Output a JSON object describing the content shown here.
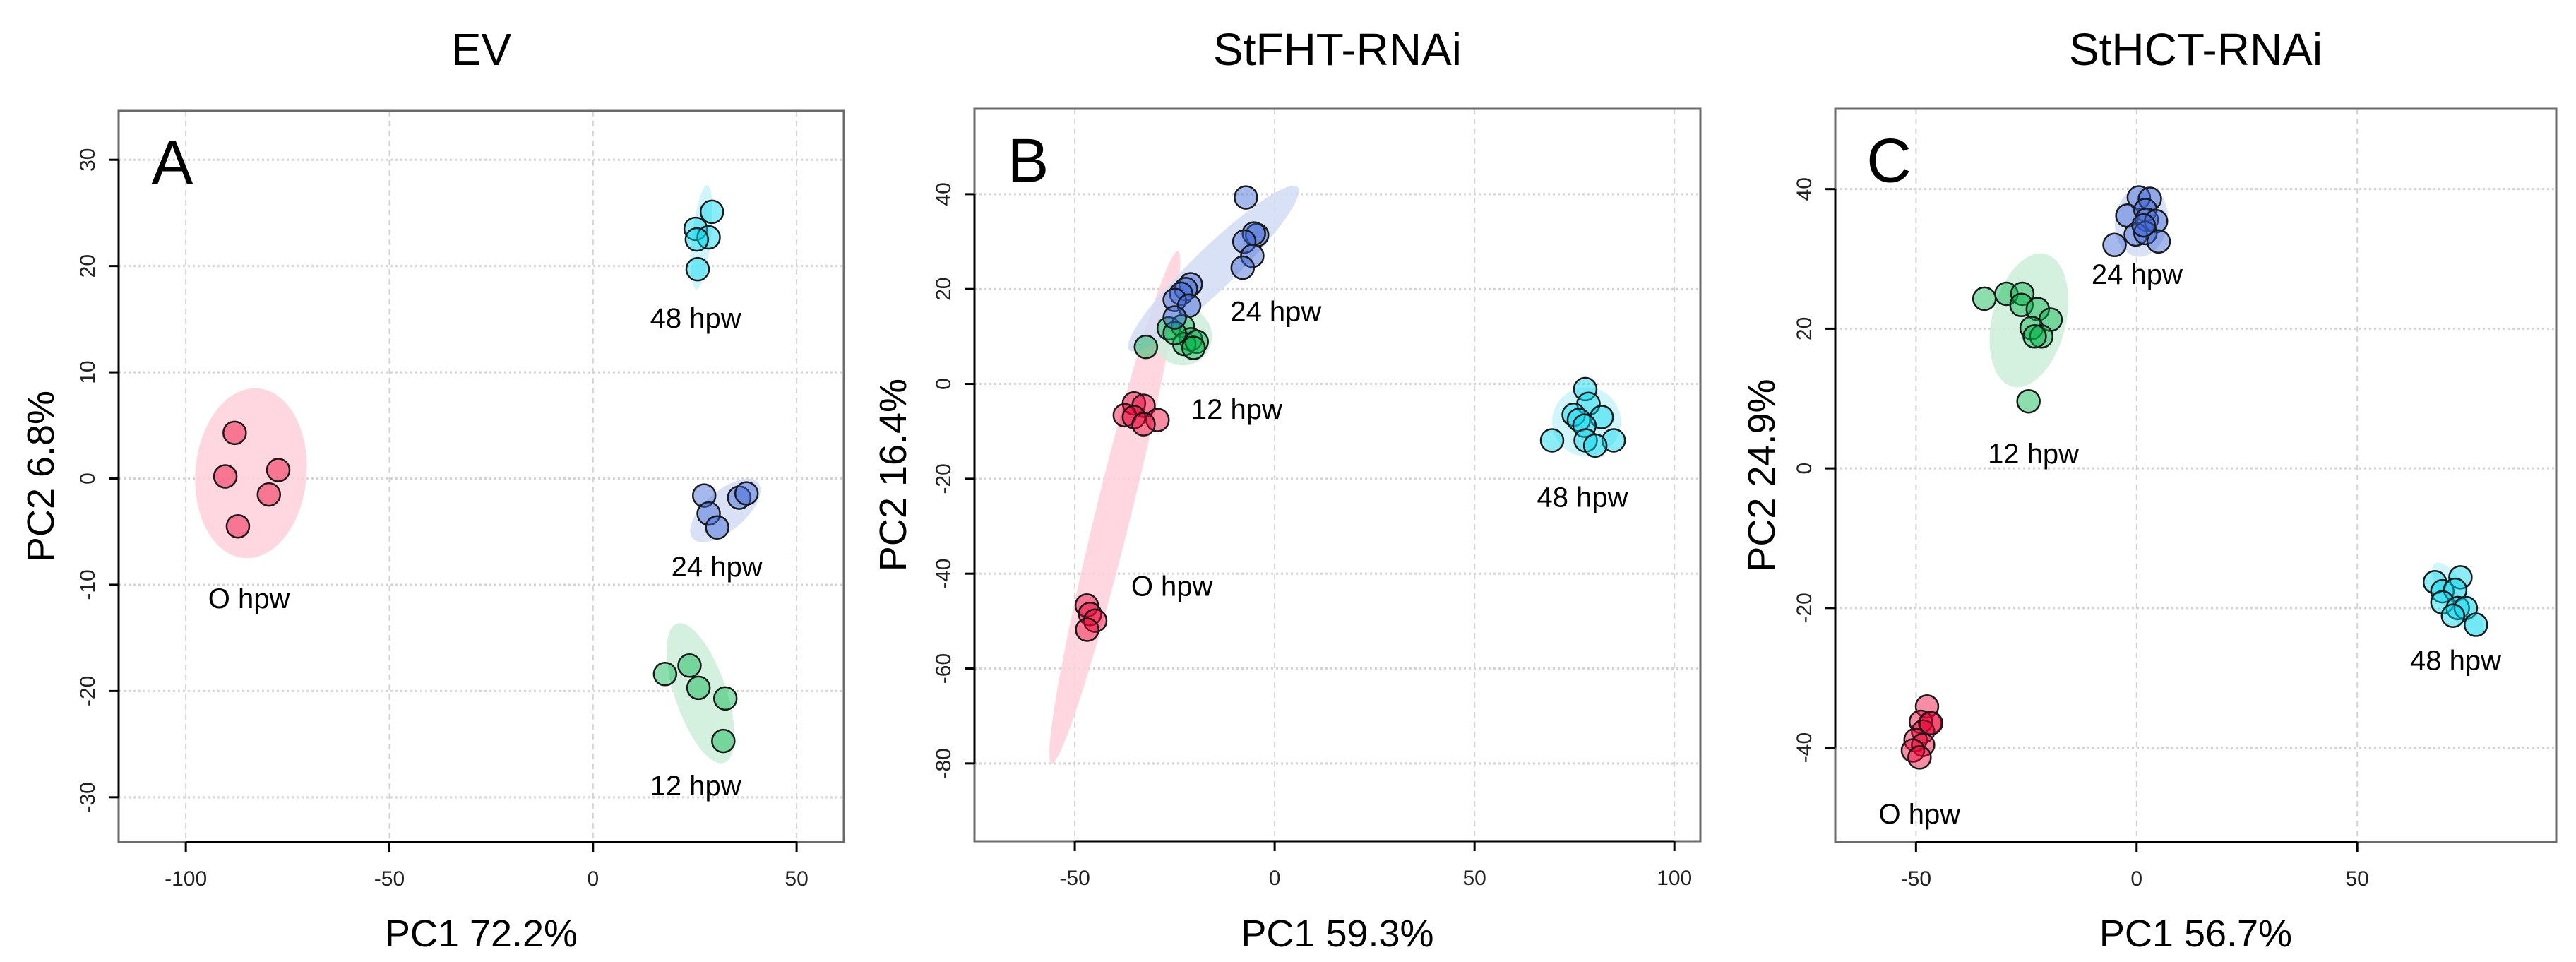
{
  "chart_data": [
    {
      "type": "scatter",
      "title": "EV",
      "panel_letter": "A",
      "xlabel": "PC1 72.2%",
      "ylabel": "PC2 6.8%",
      "xlim": [
        -116.5,
        61.6
      ],
      "ylim": [
        -34.2,
        34.6
      ],
      "xticks": [
        -100,
        -50,
        0,
        50
      ],
      "yticks": [
        -30,
        -20,
        -10,
        0,
        10,
        20,
        30
      ],
      "grid": true,
      "series": [
        {
          "name": "0 hpw",
          "label": "O hpw",
          "color": "#ee0033",
          "shade": "#ffd0da",
          "label_at": [
            -84.5,
            -11.5
          ],
          "ellipse": {
            "center": [
              -84,
              0.5
            ],
            "major": [
              1,
              8
            ],
            "minor": [
              13.7,
              0
            ]
          },
          "points": [
            [
              -88,
              4.3
            ],
            [
              -90.3,
              0.2
            ],
            [
              -77.3,
              0.8
            ],
            [
              -79.6,
              -1.5
            ],
            [
              -87.2,
              -4.5
            ]
          ]
        },
        {
          "name": "12 hpw",
          "label": "12 hpw",
          "color": "#00b548",
          "shade": "#cdeedb",
          "label_at": [
            25.2,
            -29.1
          ],
          "ellipse": {
            "center": [
              26.4,
              -20.2
            ],
            "major": [
              -6.5,
              6.4
            ],
            "minor": [
              5.2,
              1.6
            ]
          },
          "points": [
            [
              17.7,
              -18.4
            ],
            [
              23.7,
              -17.6
            ],
            [
              25.9,
              -19.7
            ],
            [
              32.5,
              -20.7
            ],
            [
              32,
              -24.7
            ]
          ]
        },
        {
          "name": "24 hpw",
          "label": "24 hpw",
          "color": "#3a64d8",
          "shade": "#d2dcf4",
          "label_at": [
            30.4,
            -8.5
          ],
          "ellipse": {
            "center": [
              32.5,
              -3
            ],
            "major": [
              8.5,
              2.3
            ],
            "minor": [
              -1.6,
              1.9
            ]
          },
          "points": [
            [
              27.3,
              -1.6
            ],
            [
              28.4,
              -3.3
            ],
            [
              30.5,
              -4.6
            ],
            [
              35.9,
              -1.8
            ],
            [
              37.7,
              -1.4
            ]
          ]
        },
        {
          "name": "48 hpw",
          "label": "48 hpw",
          "color": "#00d8ee",
          "shade": "#c8f4fa",
          "label_at": [
            25.2,
            14.9
          ],
          "ellipse": {
            "center": [
              26.7,
              22.7
            ],
            "major": [
              1.3,
              4.9
            ],
            "minor": [
              2.3,
              0
            ]
          },
          "points": [
            [
              29.2,
              25.1
            ],
            [
              25.2,
              23.5
            ],
            [
              28.4,
              22.7
            ],
            [
              25.5,
              22.5
            ],
            [
              25.7,
              19.7
            ]
          ]
        }
      ]
    },
    {
      "type": "scatter",
      "title": "StFHT-RNAi",
      "panel_letter": "B",
      "xlabel": "PC1 59.3%",
      "ylabel": "PC2 16.4%",
      "xlim": [
        -75.1,
        106.5
      ],
      "ylim": [
        -96.4,
        58
      ],
      "xticks": [
        -50,
        0,
        50,
        100
      ],
      "yticks": [
        -80,
        -60,
        -40,
        -20,
        0,
        20,
        40
      ],
      "grid": true,
      "series": [
        {
          "name": "0 hpw",
          "label": "O hpw",
          "color": "#ee0033",
          "shade": "#ffd0da",
          "label_at": [
            -25.7,
            -43.1
          ],
          "ellipse": {
            "center": [
              -40,
              -26
            ],
            "major": [
              15.8,
              54
            ],
            "minor": [
              4.3,
              -0.9
            ]
          },
          "points": [
            [
              -35.2,
              -4.1
            ],
            [
              -32.8,
              -4.6
            ],
            [
              -37.5,
              -6.6
            ],
            [
              -35.2,
              -7
            ],
            [
              -29.3,
              -7.6
            ],
            [
              -32.8,
              -8.5
            ],
            [
              -47,
              -46.7
            ],
            [
              -46.2,
              -48.5
            ],
            [
              -44.9,
              -49.9
            ],
            [
              -46.9,
              -51.8
            ]
          ]
        },
        {
          "name": "12 hpw",
          "label": "12 hpw",
          "color": "#00b548",
          "shade": "#cdeedb",
          "label_at": [
            -9.5,
            -5.8
          ],
          "ellipse": {
            "center": [
              -23,
              10
            ],
            "major": [
              7.3,
              0
            ],
            "minor": [
              0,
              6.1
            ]
          },
          "points": [
            [
              -32.2,
              7.8
            ],
            [
              -26.5,
              11.7
            ],
            [
              -23,
              12.2
            ],
            [
              -21,
              9.4
            ],
            [
              -22.6,
              8.4
            ],
            [
              -19.5,
              8.9
            ],
            [
              -20.3,
              7.6
            ],
            [
              -25,
              10.7
            ]
          ]
        },
        {
          "name": "24 hpw",
          "label": "24 hpw",
          "color": "#3a64d8",
          "shade": "#d2dcf4",
          "label_at": [
            0.3,
            14.8
          ],
          "ellipse": {
            "center": [
              -15.3,
              24.3
            ],
            "major": [
              21.1,
              17.2
            ],
            "minor": [
              3.6,
              -3.2
            ]
          },
          "points": [
            [
              -7.2,
              39.3
            ],
            [
              -4.4,
              31.4
            ],
            [
              -5.2,
              31.7
            ],
            [
              -7.6,
              30
            ],
            [
              -5.6,
              27
            ],
            [
              -8,
              24.5
            ],
            [
              -21,
              21
            ],
            [
              -22.2,
              20
            ],
            [
              -23.4,
              19
            ],
            [
              -25,
              17.7
            ],
            [
              -21.4,
              16.5
            ],
            [
              -25,
              14
            ]
          ]
        },
        {
          "name": "48 hpw",
          "label": "48 hpw",
          "color": "#00d8ee",
          "shade": "#c8f4fa",
          "label_at": [
            77,
            -24.3
          ],
          "ellipse": {
            "center": [
              78,
              -8
            ],
            "major": [
              8.6,
              0
            ],
            "minor": [
              0,
              7.3
            ]
          },
          "points": [
            [
              77.7,
              -1.1
            ],
            [
              78.5,
              -4.2
            ],
            [
              74.8,
              -6.5
            ],
            [
              81.8,
              -7
            ],
            [
              76.1,
              -7.6
            ],
            [
              77.5,
              -8.8
            ],
            [
              69.4,
              -11.9
            ],
            [
              84.8,
              -11.9
            ],
            [
              77.8,
              -11.9
            ],
            [
              80.2,
              -13
            ]
          ]
        }
      ]
    },
    {
      "type": "scatter",
      "title": "StHCT-RNAi",
      "panel_letter": "C",
      "xlabel": "PC1 56.7%",
      "ylabel": "PC2 24.9%",
      "xlim": [
        -68.3,
        95.1
      ],
      "ylim": [
        -53.5,
        51.5
      ],
      "xticks": [
        -50,
        0,
        50
      ],
      "yticks": [
        -40,
        -20,
        0,
        20,
        40
      ],
      "grid": true,
      "series": [
        {
          "name": "0 hpw",
          "label": "O hpw",
          "color": "#ee0033",
          "shade": "#ffd0da",
          "label_at": [
            -49.2,
            -49.8
          ],
          "ellipse": null,
          "points": [
            [
              -47.5,
              -34.1
            ],
            [
              -46.8,
              -36.5
            ],
            [
              -48.9,
              -36.3
            ],
            [
              -48.4,
              -37.7
            ],
            [
              -50.1,
              -38.9
            ],
            [
              -48.4,
              -39.6
            ],
            [
              -50.7,
              -40.4
            ],
            [
              -49.2,
              -41.4
            ],
            [
              -46.6,
              -36.5
            ]
          ]
        },
        {
          "name": "12 hpw",
          "label": "12 hpw",
          "color": "#00b548",
          "shade": "#cdeedb",
          "label_at": [
            -23.4,
            1.8
          ],
          "ellipse": {
            "center": [
              -24.4,
              21.2
            ],
            "major": [
              3.75,
              9.5
            ],
            "minor": [
              8.1,
              -1.3
            ]
          },
          "points": [
            [
              -34.5,
              24.3
            ],
            [
              -29.5,
              25
            ],
            [
              -25.9,
              25
            ],
            [
              -26.1,
              23.4
            ],
            [
              -22.4,
              22.8
            ],
            [
              -19.5,
              21.3
            ],
            [
              -23.8,
              20.1
            ],
            [
              -21.6,
              18.9
            ],
            [
              -23.1,
              18.9
            ],
            [
              -24.5,
              9.6
            ]
          ]
        },
        {
          "name": "24 hpw",
          "label": "24 hpw",
          "color": "#3a64d8",
          "shade": "#d2dcf4",
          "label_at": [
            0.1,
            27.5
          ],
          "ellipse": {
            "center": [
              1.1,
              35.4
            ],
            "major": [
              0.5,
              5.1
            ],
            "minor": [
              6,
              0
            ]
          },
          "points": [
            [
              -5,
              32
            ],
            [
              -2.1,
              36.2
            ],
            [
              0.5,
              38.8
            ],
            [
              3,
              38.6
            ],
            [
              2,
              37
            ],
            [
              2.3,
              35.6
            ],
            [
              4.4,
              35.4
            ],
            [
              -0.2,
              33.5
            ],
            [
              2,
              33.7
            ],
            [
              5,
              32.5
            ],
            [
              1.6,
              34.8
            ]
          ]
        },
        {
          "name": "48 hpw",
          "label": "48 hpw",
          "color": "#00d8ee",
          "shade": "#c8f4fa",
          "label_at": [
            72.3,
            -27.8
          ],
          "ellipse": {
            "center": [
              72.8,
              -18.8
            ],
            "major": [
              -5.2,
              5.2
            ],
            "minor": [
              2.7,
              1.1
            ]
          },
          "points": [
            [
              67.6,
              -16.3
            ],
            [
              73.4,
              -15.6
            ],
            [
              69.3,
              -17.6
            ],
            [
              72.2,
              -17.4
            ],
            [
              69.3,
              -19.2
            ],
            [
              72.8,
              -20
            ],
            [
              74.6,
              -20
            ],
            [
              71.7,
              -21.1
            ],
            [
              76.9,
              -22.4
            ]
          ]
        }
      ]
    }
  ]
}
